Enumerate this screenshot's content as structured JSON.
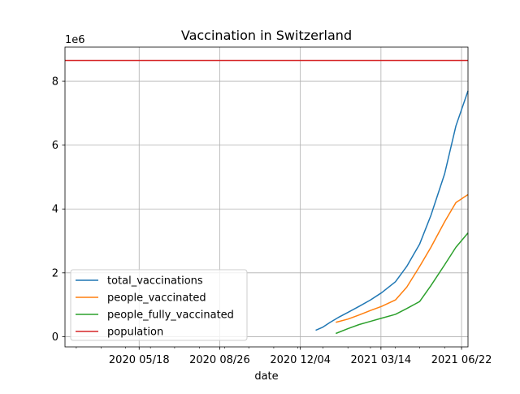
{
  "chart_data": {
    "type": "line",
    "title": "Vaccination in Switzerland",
    "xlabel": "date",
    "ylabel": "",
    "y_offset_label": "1e6",
    "x_axis_type": "date",
    "xlim": [
      "2020-02-16",
      "2021-06-30"
    ],
    "ylim": [
      -320000,
      9070000
    ],
    "grid": true,
    "legend_position": "lower-left",
    "x_ticks": [
      {
        "date": "2020-05-18",
        "label": "2020 05/18"
      },
      {
        "date": "2020-08-26",
        "label": "2020 08/26"
      },
      {
        "date": "2020-12-04",
        "label": "2020 12/04"
      },
      {
        "date": "2021-03-14",
        "label": "2021 03/14"
      },
      {
        "date": "2021-06-22",
        "label": "2021 06/22"
      }
    ],
    "x_minor_ticks": [
      "2020-03-01",
      "2020-04-01",
      "2020-05-01",
      "2020-06-01",
      "2020-07-01",
      "2020-08-01",
      "2020-09-01",
      "2020-10-01",
      "2020-11-01",
      "2020-12-01",
      "2021-01-01",
      "2021-02-01",
      "2021-03-01",
      "2021-04-01",
      "2021-05-01",
      "2021-06-01"
    ],
    "y_ticks": [
      {
        "value": 0,
        "label": "0"
      },
      {
        "value": 2000000,
        "label": "2"
      },
      {
        "value": 4000000,
        "label": "4"
      },
      {
        "value": 6000000,
        "label": "6"
      },
      {
        "value": 8000000,
        "label": "8"
      }
    ],
    "series": [
      {
        "name": "total_vaccinations",
        "color": "#1f77b4",
        "points": [
          [
            "2020-12-23",
            200000
          ],
          [
            "2021-01-01",
            300000
          ],
          [
            "2021-01-10",
            450000
          ],
          [
            "2021-01-20",
            600000
          ],
          [
            "2021-02-01",
            760000
          ],
          [
            "2021-02-15",
            950000
          ],
          [
            "2021-03-01",
            1150000
          ],
          [
            "2021-03-15",
            1380000
          ],
          [
            "2021-04-01",
            1720000
          ],
          [
            "2021-04-15",
            2200000
          ],
          [
            "2021-05-01",
            2900000
          ],
          [
            "2021-05-15",
            3800000
          ],
          [
            "2021-06-01",
            5100000
          ],
          [
            "2021-06-15",
            6600000
          ],
          [
            "2021-06-30",
            7700000
          ]
        ]
      },
      {
        "name": "people_vaccinated",
        "color": "#ff7f0e",
        "points": [
          [
            "2021-01-17",
            450000
          ],
          [
            "2021-02-01",
            550000
          ],
          [
            "2021-02-15",
            680000
          ],
          [
            "2021-03-01",
            820000
          ],
          [
            "2021-03-15",
            950000
          ],
          [
            "2021-04-01",
            1150000
          ],
          [
            "2021-04-15",
            1550000
          ],
          [
            "2021-05-01",
            2200000
          ],
          [
            "2021-05-15",
            2800000
          ],
          [
            "2021-06-01",
            3600000
          ],
          [
            "2021-06-15",
            4200000
          ],
          [
            "2021-06-30",
            4450000
          ]
        ]
      },
      {
        "name": "people_fully_vaccinated",
        "color": "#2ca02c",
        "points": [
          [
            "2021-01-17",
            100000
          ],
          [
            "2021-02-01",
            250000
          ],
          [
            "2021-02-15",
            380000
          ],
          [
            "2021-03-01",
            480000
          ],
          [
            "2021-03-15",
            580000
          ],
          [
            "2021-04-01",
            700000
          ],
          [
            "2021-04-15",
            880000
          ],
          [
            "2021-05-01",
            1100000
          ],
          [
            "2021-05-15",
            1600000
          ],
          [
            "2021-06-01",
            2250000
          ],
          [
            "2021-06-15",
            2800000
          ],
          [
            "2021-06-30",
            3250000
          ]
        ]
      },
      {
        "name": "population",
        "color": "#d62728",
        "points": [
          [
            "2020-02-16",
            8650000
          ],
          [
            "2021-06-30",
            8650000
          ]
        ]
      }
    ]
  }
}
